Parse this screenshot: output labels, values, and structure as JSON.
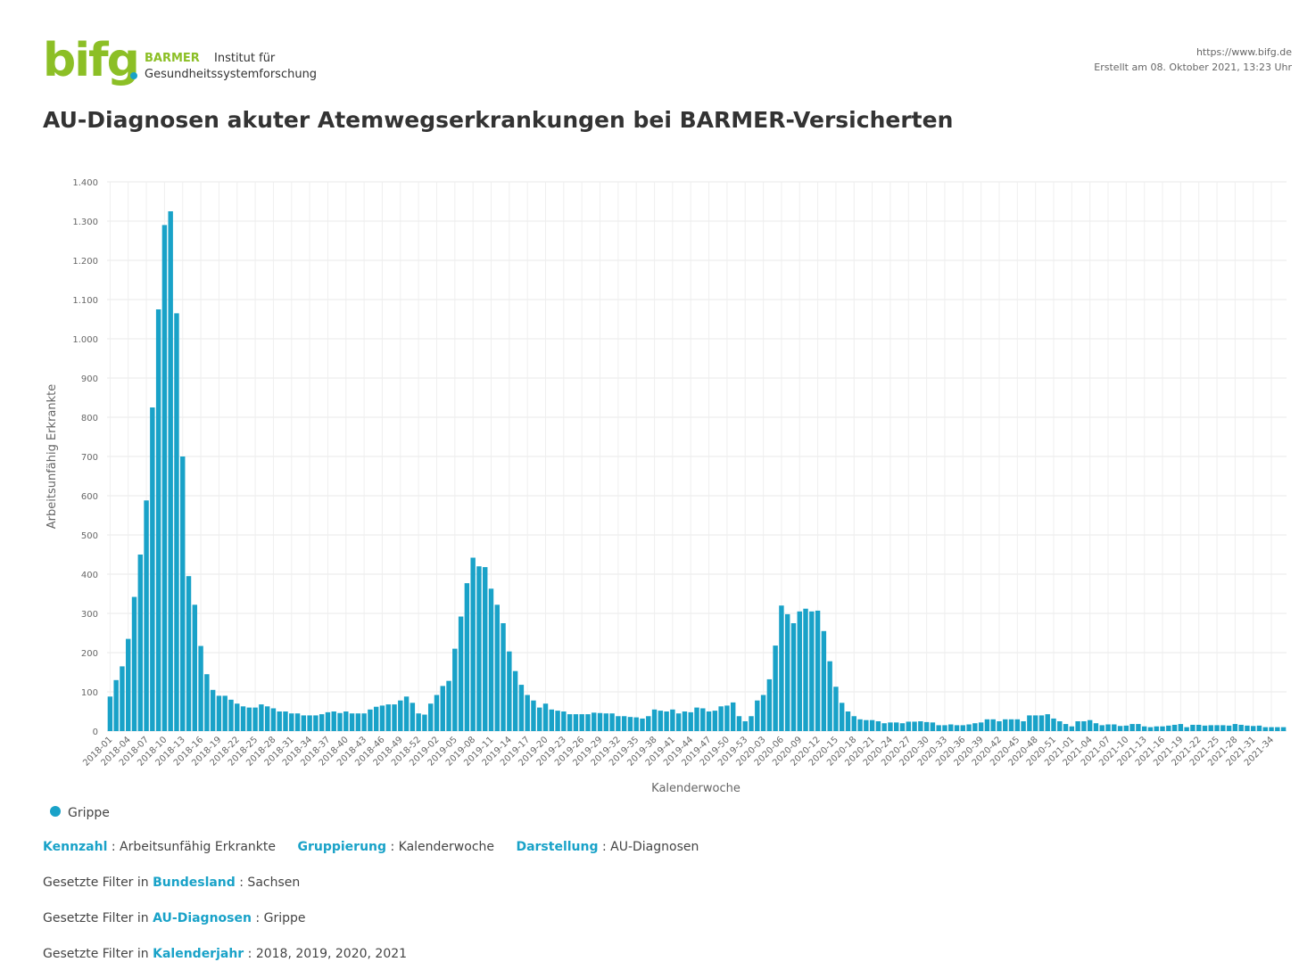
{
  "header": {
    "logo": "bifg",
    "brand": "BARMER",
    "institute_line1": "Institut für",
    "institute_line2": "Gesundheitssystemforschung",
    "url": "https://www.bifg.de",
    "created": "Erstellt am 08. Oktober 2021, 13:23 Uhr"
  },
  "chart_data": {
    "type": "bar",
    "title": "AU-Diagnosen akuter Atemwegserkrankungen bei BARMER-Versicherten",
    "x_label": "Kalenderwoche",
    "y_label": "Arbeitsunfähig Erkrankte",
    "color": "#19a2c8",
    "grid": true,
    "ylim": [
      0,
      1400
    ],
    "yticks": [
      0,
      100,
      200,
      300,
      400,
      500,
      600,
      700,
      800,
      900,
      {
        "value": 1000,
        "label": "1.000"
      },
      {
        "value": 1100,
        "label": "1.100"
      },
      {
        "value": 1200,
        "label": "1.200"
      },
      {
        "value": 1300,
        "label": "1.300"
      },
      {
        "value": 1400,
        "label": "1.400"
      }
    ],
    "categories": [
      "2018-01",
      null,
      null,
      "2018-04",
      null,
      null,
      "2018-07",
      null,
      null,
      "2018-10",
      null,
      null,
      "2018-13",
      null,
      null,
      "2018-16",
      null,
      null,
      "2018-19",
      null,
      null,
      "2018-22",
      null,
      null,
      "2018-25",
      null,
      null,
      "2018-28",
      null,
      null,
      "2018-31",
      null,
      null,
      "2018-34",
      null,
      null,
      "2018-37",
      null,
      null,
      "2018-40",
      null,
      null,
      "2018-43",
      null,
      null,
      "2018-46",
      null,
      null,
      "2018-49",
      null,
      null,
      "2018-52",
      null,
      null,
      "2019-02",
      null,
      null,
      "2019-05",
      null,
      null,
      "2019-08",
      null,
      null,
      "2019-11",
      null,
      null,
      "2019-14",
      null,
      null,
      "2019-17",
      null,
      null,
      "2019-20",
      null,
      null,
      "2019-23",
      null,
      null,
      "2019-26",
      null,
      null,
      "2019-29",
      null,
      null,
      "2019-32",
      null,
      null,
      "2019-35",
      null,
      null,
      "2019-38",
      null,
      null,
      "2019-41",
      null,
      null,
      "2019-44",
      null,
      null,
      "2019-47",
      null,
      null,
      "2019-50",
      null,
      null,
      "2019-53",
      null,
      null,
      "2020-03",
      null,
      null,
      "2020-06",
      null,
      null,
      "2020-09",
      null,
      null,
      "2020-12",
      null,
      null,
      "2020-15",
      null,
      null,
      "2020-18",
      null,
      null,
      "2020-21",
      null,
      null,
      "2020-24",
      null,
      null,
      "2020-27",
      null,
      null,
      "2020-30",
      null,
      null,
      "2020-33",
      null,
      null,
      "2020-36",
      null,
      null,
      "2020-39",
      null,
      null,
      "2020-42",
      null,
      null,
      "2020-45",
      null,
      null,
      "2020-48",
      null,
      null,
      "2020-51",
      null,
      null,
      "2021-01",
      null,
      null,
      "2021-04",
      null,
      null,
      "2021-07",
      null,
      null,
      "2021-10",
      null,
      null,
      "2021-13",
      null,
      null,
      "2021-16",
      null,
      null,
      "2021-19",
      null,
      null,
      "2021-22",
      null,
      null,
      "2021-25",
      null,
      null,
      "2021-28",
      null,
      null,
      "2021-31",
      null,
      null,
      "2021-34",
      null,
      null
    ],
    "series": [
      {
        "name": "Grippe",
        "color": "#19a2c8",
        "values": [
          88,
          130,
          165,
          235,
          342,
          450,
          588,
          825,
          1075,
          1290,
          1325,
          1065,
          700,
          395,
          322,
          217,
          145,
          105,
          90,
          90,
          80,
          70,
          63,
          60,
          60,
          68,
          63,
          58,
          50,
          50,
          45,
          45,
          40,
          40,
          40,
          43,
          48,
          50,
          46,
          50,
          45,
          45,
          45,
          55,
          62,
          65,
          68,
          68,
          78,
          88,
          72,
          45,
          42,
          70,
          92,
          115,
          128,
          210,
          292,
          377,
          442,
          420,
          418,
          363,
          322,
          275,
          203,
          153,
          118,
          92,
          78,
          60,
          70,
          55,
          52,
          50,
          43,
          43,
          43,
          43,
          47,
          46,
          45,
          45,
          38,
          38,
          36,
          35,
          32,
          38,
          55,
          52,
          50,
          55,
          45,
          50,
          48,
          60,
          58,
          50,
          52,
          63,
          65,
          73,
          38,
          25,
          38,
          78,
          92,
          132,
          218,
          320,
          298,
          275,
          305,
          312,
          305,
          307,
          255,
          178,
          113,
          72,
          50,
          38,
          30,
          28,
          28,
          25,
          20,
          22,
          22,
          20,
          24,
          24,
          25,
          23,
          22,
          15,
          15,
          17,
          15,
          15,
          17,
          20,
          22,
          30,
          30,
          25,
          30,
          30,
          30,
          25,
          40,
          40,
          40,
          43,
          32,
          25,
          18,
          12,
          25,
          25,
          28,
          20,
          15,
          17,
          17,
          13,
          14,
          18,
          18,
          12,
          10,
          12,
          12,
          14,
          16,
          18,
          10,
          16,
          16,
          14,
          15,
          15,
          15,
          14,
          18,
          16,
          14,
          13,
          14,
          10,
          10,
          10,
          10
        ]
      }
    ]
  },
  "summary": [
    {
      "key": "Kennzahl",
      "value": ": Arbeitsunfähig Erkrankte"
    },
    {
      "key": "Gruppierung",
      "value": ": Kalenderwoche"
    },
    {
      "key": "Darstellung",
      "value": ": AU-Diagnosen"
    }
  ],
  "filters": [
    {
      "prefix": "Gesetzte Filter in",
      "key": "Bundesland",
      "value": ": Sachsen"
    },
    {
      "prefix": "Gesetzte Filter in",
      "key": "AU-Diagnosen",
      "value": ": Grippe"
    },
    {
      "prefix": "Gesetzte Filter in",
      "key": "Kalenderjahr",
      "value": ": 2018, 2019, 2020, 2021"
    }
  ]
}
